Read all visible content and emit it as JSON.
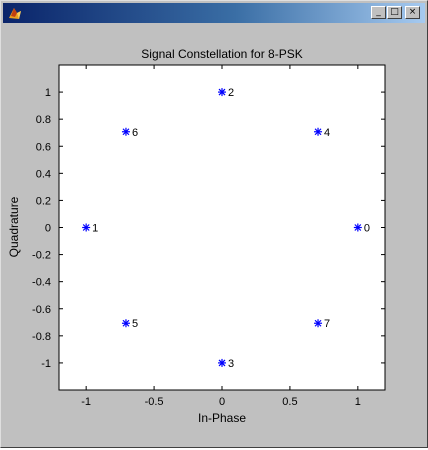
{
  "window": {
    "icon": "matlab-figure-icon",
    "minimize_label": "_",
    "maximize_label": "□",
    "close_label": "×"
  },
  "colors": {
    "title_start": "#0a246a",
    "title_end": "#a6caf0",
    "figure_bg": "#c0c0c0",
    "axes_bg": "#ffffff",
    "marker": "#0000ff"
  },
  "chart_data": {
    "type": "scatter",
    "title": "Signal Constellation for 8-PSK",
    "xlabel": "In-Phase",
    "ylabel": "Quadrature",
    "xlim": [
      -1.2,
      1.2
    ],
    "ylim": [
      -1.2,
      1.2
    ],
    "xticks": [
      -1,
      -0.5,
      0,
      0.5,
      1
    ],
    "xtick_labels": [
      "-1",
      "-0.5",
      "0",
      "0.5",
      "1"
    ],
    "yticks": [
      -1,
      -0.8,
      -0.6,
      -0.4,
      -0.2,
      0,
      0.2,
      0.4,
      0.6,
      0.8,
      1
    ],
    "ytick_labels": [
      "-1",
      "-0.8",
      "-0.6",
      "-0.4",
      "-0.2",
      "0",
      "0.2",
      "0.4",
      "0.6",
      "0.8",
      "1"
    ],
    "grid": false,
    "marker": "*",
    "points": [
      {
        "x": 1,
        "y": 0,
        "label": "0"
      },
      {
        "x": -1,
        "y": 0,
        "label": "1"
      },
      {
        "x": 0,
        "y": 1,
        "label": "2"
      },
      {
        "x": 0,
        "y": -1,
        "label": "3"
      },
      {
        "x": 0.707,
        "y": 0.707,
        "label": "4"
      },
      {
        "x": -0.707,
        "y": -0.707,
        "label": "5"
      },
      {
        "x": -0.707,
        "y": 0.707,
        "label": "6"
      },
      {
        "x": 0.707,
        "y": -0.707,
        "label": "7"
      }
    ]
  }
}
